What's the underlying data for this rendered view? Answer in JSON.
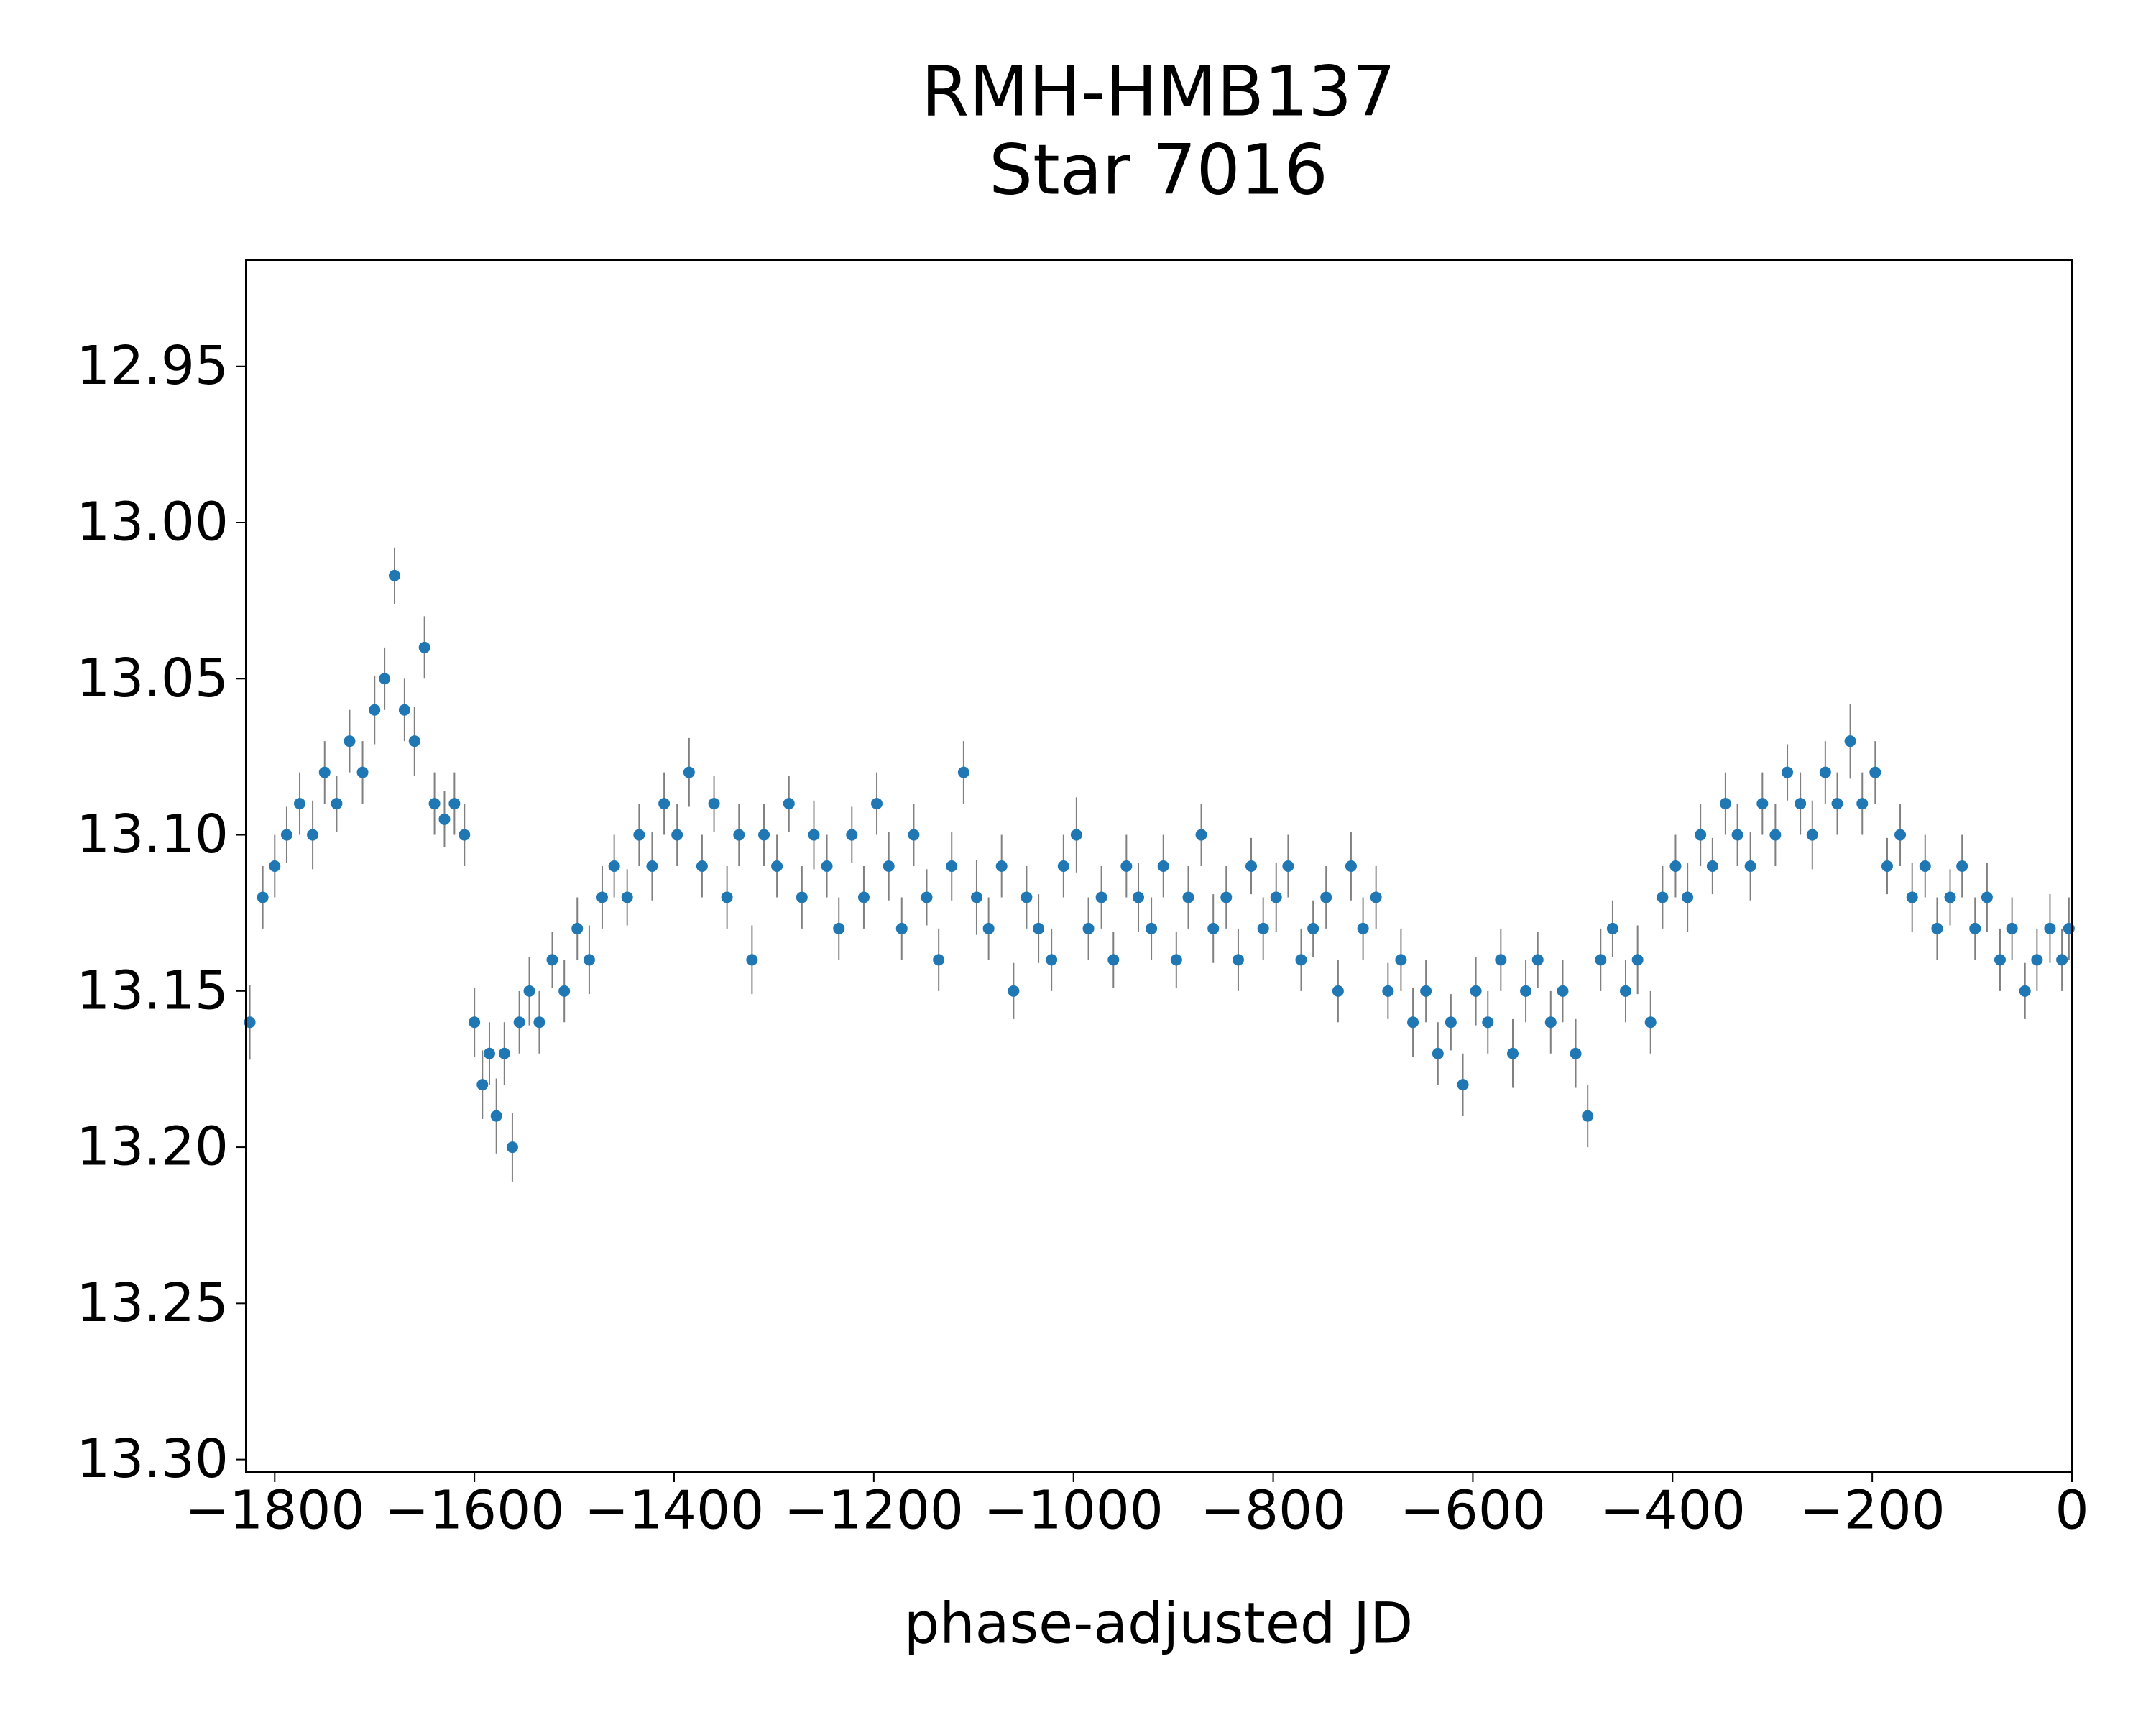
{
  "chart_data": {
    "type": "scatter",
    "title": "RMH-HMB137",
    "subtitle": "Star 7016",
    "x_label": "phase-adjusted JD",
    "xlim": [
      -1829,
      0
    ],
    "ylim": [
      12.916,
      13.304
    ],
    "y_inverted": true,
    "grid": false,
    "xticks": [
      {
        "value": -1800,
        "label": "−1800"
      },
      {
        "value": -1600,
        "label": "−1600"
      },
      {
        "value": -1400,
        "label": "−1400"
      },
      {
        "value": -1200,
        "label": "−1200"
      },
      {
        "value": -1000,
        "label": "−1000"
      },
      {
        "value": -800,
        "label": "−800"
      },
      {
        "value": -600,
        "label": "−600"
      },
      {
        "value": -400,
        "label": "−400"
      },
      {
        "value": -200,
        "label": "−200"
      },
      0
    ],
    "yticks": [
      12.95,
      {
        "value": 13.0,
        "label": "13.00"
      },
      13.05,
      {
        "value": 13.1,
        "label": "13.10"
      },
      13.15,
      {
        "value": 13.2,
        "label": "13.20"
      },
      13.25,
      {
        "value": 13.3,
        "label": "13.30"
      }
    ],
    "series": [
      {
        "color": "#1f77b4",
        "error_color": "#808080",
        "x": [
          -1825,
          -1812,
          -1800,
          -1788,
          -1775,
          -1762,
          -1750,
          -1738,
          -1725,
          -1712,
          -1700,
          -1690,
          -1680,
          -1670,
          -1660,
          -1650,
          -1640,
          -1630,
          -1620,
          -1610,
          -1600,
          -1592,
          -1585,
          -1578,
          -1570,
          -1562,
          -1555,
          -1545,
          -1535,
          -1522,
          -1510,
          -1497,
          -1485,
          -1472,
          -1460,
          -1447,
          -1435,
          -1422,
          -1410,
          -1397,
          -1385,
          -1372,
          -1360,
          -1347,
          -1335,
          -1322,
          -1310,
          -1297,
          -1285,
          -1272,
          -1260,
          -1247,
          -1235,
          -1222,
          -1210,
          -1197,
          -1185,
          -1172,
          -1160,
          -1147,
          -1135,
          -1122,
          -1110,
          -1097,
          -1085,
          -1072,
          -1060,
          -1047,
          -1035,
          -1022,
          -1010,
          -997,
          -985,
          -972,
          -960,
          -947,
          -935,
          -922,
          -910,
          -897,
          -885,
          -872,
          -860,
          -847,
          -835,
          -822,
          -810,
          -797,
          -785,
          -772,
          -760,
          -747,
          -735,
          -722,
          -710,
          -697,
          -685,
          -672,
          -660,
          -647,
          -635,
          -622,
          -610,
          -597,
          -585,
          -572,
          -560,
          -547,
          -535,
          -522,
          -510,
          -497,
          -485,
          -472,
          -460,
          -447,
          -435,
          -422,
          -410,
          -397,
          -385,
          -372,
          -360,
          -347,
          -335,
          -322,
          -310,
          -297,
          -285,
          -272,
          -260,
          -247,
          -235,
          -222,
          -210,
          -197,
          -185,
          -172,
          -160,
          -147,
          -135,
          -122,
          -110,
          -97,
          -85,
          -72,
          -60,
          -47,
          -35,
          -22,
          -10,
          -3
        ],
        "y": [
          13.16,
          13.12,
          13.11,
          13.1,
          13.09,
          13.1,
          13.08,
          13.09,
          13.07,
          13.08,
          13.06,
          13.05,
          13.017,
          13.06,
          13.07,
          13.04,
          13.09,
          13.095,
          13.09,
          13.1,
          13.16,
          13.18,
          13.17,
          13.19,
          13.17,
          13.2,
          13.16,
          13.15,
          13.16,
          13.14,
          13.15,
          13.13,
          13.14,
          13.12,
          13.11,
          13.12,
          13.1,
          13.11,
          13.09,
          13.1,
          13.08,
          13.11,
          13.09,
          13.12,
          13.1,
          13.14,
          13.1,
          13.11,
          13.09,
          13.12,
          13.1,
          13.11,
          13.13,
          13.1,
          13.12,
          13.09,
          13.11,
          13.13,
          13.1,
          13.12,
          13.14,
          13.11,
          13.08,
          13.12,
          13.13,
          13.11,
          13.15,
          13.12,
          13.13,
          13.14,
          13.11,
          13.1,
          13.13,
          13.12,
          13.14,
          13.11,
          13.12,
          13.13,
          13.11,
          13.14,
          13.12,
          13.1,
          13.13,
          13.12,
          13.14,
          13.11,
          13.13,
          13.12,
          13.11,
          13.14,
          13.13,
          13.12,
          13.15,
          13.11,
          13.13,
          13.12,
          13.15,
          13.14,
          13.16,
          13.15,
          13.17,
          13.16,
          13.18,
          13.15,
          13.16,
          13.14,
          13.17,
          13.15,
          13.14,
          13.16,
          13.15,
          13.17,
          13.19,
          13.14,
          13.13,
          13.15,
          13.14,
          13.16,
          13.12,
          13.11,
          13.12,
          13.1,
          13.11,
          13.09,
          13.1,
          13.11,
          13.09,
          13.1,
          13.08,
          13.09,
          13.1,
          13.08,
          13.09,
          13.07,
          13.09,
          13.08,
          13.11,
          13.1,
          13.12,
          13.11,
          13.13,
          13.12,
          13.11,
          13.13,
          13.12,
          13.14,
          13.13,
          13.15,
          13.14,
          13.13,
          13.14,
          13.13
        ],
        "yerr": [
          0.012,
          0.01,
          0.01,
          0.009,
          0.01,
          0.011,
          0.01,
          0.009,
          0.01,
          0.01,
          0.011,
          0.01,
          0.009,
          0.01,
          0.011,
          0.01,
          0.01,
          0.009,
          0.01,
          0.01,
          0.011,
          0.011,
          0.01,
          0.012,
          0.01,
          0.011,
          0.01,
          0.011,
          0.01,
          0.009,
          0.01,
          0.01,
          0.011,
          0.01,
          0.01,
          0.009,
          0.01,
          0.011,
          0.01,
          0.01,
          0.011,
          0.01,
          0.009,
          0.01,
          0.01,
          0.011,
          0.01,
          0.01,
          0.009,
          0.01,
          0.011,
          0.01,
          0.01,
          0.009,
          0.01,
          0.01,
          0.011,
          0.01,
          0.01,
          0.009,
          0.01,
          0.011,
          0.01,
          0.012,
          0.01,
          0.01,
          0.009,
          0.01,
          0.011,
          0.01,
          0.01,
          0.012,
          0.01,
          0.01,
          0.009,
          0.01,
          0.011,
          0.01,
          0.01,
          0.009,
          0.01,
          0.01,
          0.011,
          0.01,
          0.01,
          0.009,
          0.01,
          0.011,
          0.01,
          0.01,
          0.009,
          0.01,
          0.01,
          0.011,
          0.01,
          0.01,
          0.009,
          0.01,
          0.011,
          0.01,
          0.01,
          0.009,
          0.01,
          0.011,
          0.01,
          0.01,
          0.011,
          0.01,
          0.009,
          0.01,
          0.01,
          0.011,
          0.01,
          0.01,
          0.009,
          0.01,
          0.011,
          0.01,
          0.01,
          0.01,
          0.011,
          0.01,
          0.009,
          0.01,
          0.01,
          0.011,
          0.01,
          0.01,
          0.009,
          0.01,
          0.011,
          0.01,
          0.01,
          0.012,
          0.01,
          0.01,
          0.009,
          0.01,
          0.011,
          0.01,
          0.01,
          0.009,
          0.01,
          0.01,
          0.011,
          0.01,
          0.01,
          0.009,
          0.01,
          0.011,
          0.01,
          0.01
        ]
      }
    ]
  }
}
